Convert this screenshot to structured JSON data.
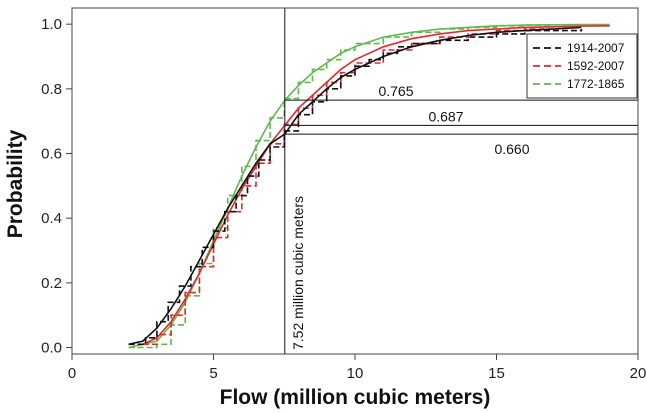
{
  "chart_data": {
    "type": "line",
    "title": "",
    "xlabel": "Flow (million cubic meters)",
    "ylabel": "Probability",
    "xlim": [
      0,
      20
    ],
    "ylim": [
      -0.02,
      1.05
    ],
    "x_ticks": [
      0,
      5,
      10,
      15,
      20
    ],
    "y_ticks": [
      0.0,
      0.2,
      0.4,
      0.6,
      0.8,
      1.0
    ],
    "grid": false,
    "legend_position": "top-right",
    "colors": {
      "1914-2007": "#111111",
      "1592-2007": "#e8262b",
      "1772-1865": "#5dbb4a"
    },
    "series": [
      {
        "name": "1914-2007",
        "style": "dashed",
        "empirical": [
          [
            2.0,
            0.01
          ],
          [
            2.6,
            0.03
          ],
          [
            3.0,
            0.08
          ],
          [
            3.4,
            0.14
          ],
          [
            3.8,
            0.19
          ],
          [
            4.2,
            0.25
          ],
          [
            4.6,
            0.31
          ],
          [
            5.0,
            0.36
          ],
          [
            5.4,
            0.42
          ],
          [
            5.8,
            0.47
          ],
          [
            6.2,
            0.53
          ],
          [
            6.6,
            0.58
          ],
          [
            7.0,
            0.62
          ],
          [
            7.5,
            0.67
          ],
          [
            8.0,
            0.72
          ],
          [
            8.5,
            0.76
          ],
          [
            9.0,
            0.8
          ],
          [
            9.5,
            0.84
          ],
          [
            10.0,
            0.87
          ],
          [
            10.5,
            0.89
          ],
          [
            11.0,
            0.91
          ],
          [
            11.5,
            0.93
          ],
          [
            12.0,
            0.94
          ],
          [
            13.0,
            0.95
          ],
          [
            14.0,
            0.96
          ],
          [
            15.0,
            0.97
          ],
          [
            16.0,
            0.98
          ],
          [
            17.0,
            0.98
          ],
          [
            18.0,
            0.985
          ]
        ],
        "fitted": [
          [
            2.0,
            0.01
          ],
          [
            2.5,
            0.02
          ],
          [
            3.0,
            0.06
          ],
          [
            3.5,
            0.12
          ],
          [
            4.0,
            0.19
          ],
          [
            4.5,
            0.27
          ],
          [
            5.0,
            0.35
          ],
          [
            5.5,
            0.43
          ],
          [
            6.0,
            0.5
          ],
          [
            6.5,
            0.57
          ],
          [
            7.0,
            0.63
          ],
          [
            7.52,
            0.66
          ],
          [
            8.0,
            0.72
          ],
          [
            8.5,
            0.76
          ],
          [
            9.0,
            0.8
          ],
          [
            9.5,
            0.835
          ],
          [
            10.0,
            0.86
          ],
          [
            11.0,
            0.9
          ],
          [
            12.0,
            0.93
          ],
          [
            13.0,
            0.95
          ],
          [
            14.0,
            0.965
          ],
          [
            15.0,
            0.975
          ],
          [
            16.0,
            0.98
          ],
          [
            17.0,
            0.985
          ],
          [
            18.0,
            0.99
          ]
        ]
      },
      {
        "name": "1592-2007",
        "style": "dashed",
        "empirical": [
          [
            2.5,
            0.01
          ],
          [
            3.0,
            0.04
          ],
          [
            3.5,
            0.1
          ],
          [
            4.0,
            0.17
          ],
          [
            4.5,
            0.25
          ],
          [
            5.0,
            0.34
          ],
          [
            5.5,
            0.42
          ],
          [
            6.0,
            0.5
          ],
          [
            6.5,
            0.57
          ],
          [
            7.0,
            0.63
          ],
          [
            7.5,
            0.69
          ],
          [
            8.0,
            0.74
          ],
          [
            8.5,
            0.78
          ],
          [
            9.0,
            0.82
          ],
          [
            9.5,
            0.85
          ],
          [
            10.0,
            0.88
          ],
          [
            11.0,
            0.92
          ],
          [
            12.0,
            0.94
          ],
          [
            13.0,
            0.96
          ],
          [
            14.0,
            0.97
          ],
          [
            15.0,
            0.98
          ],
          [
            16.0,
            0.985
          ],
          [
            17.0,
            0.99
          ]
        ],
        "fitted": [
          [
            2.5,
            0.01
          ],
          [
            3.0,
            0.03
          ],
          [
            3.5,
            0.08
          ],
          [
            4.0,
            0.15
          ],
          [
            4.5,
            0.23
          ],
          [
            5.0,
            0.32
          ],
          [
            5.5,
            0.41
          ],
          [
            6.0,
            0.49
          ],
          [
            6.5,
            0.56
          ],
          [
            7.0,
            0.63
          ],
          [
            7.52,
            0.687
          ],
          [
            8.0,
            0.74
          ],
          [
            8.5,
            0.78
          ],
          [
            9.0,
            0.82
          ],
          [
            9.5,
            0.86
          ],
          [
            10.0,
            0.89
          ],
          [
            11.0,
            0.93
          ],
          [
            12.0,
            0.955
          ],
          [
            13.0,
            0.97
          ],
          [
            14.0,
            0.98
          ],
          [
            15.0,
            0.985
          ],
          [
            16.0,
            0.99
          ],
          [
            17.0,
            0.992
          ],
          [
            18.0,
            0.994
          ],
          [
            19.0,
            0.995
          ]
        ]
      },
      {
        "name": "1772-1865",
        "style": "dashed",
        "empirical": [
          [
            2.0,
            0.0
          ],
          [
            3.0,
            0.01
          ],
          [
            3.5,
            0.07
          ],
          [
            4.0,
            0.16
          ],
          [
            4.5,
            0.26
          ],
          [
            5.0,
            0.37
          ],
          [
            5.5,
            0.47
          ],
          [
            6.0,
            0.56
          ],
          [
            6.5,
            0.64
          ],
          [
            7.0,
            0.71
          ],
          [
            7.5,
            0.77
          ],
          [
            8.0,
            0.82
          ],
          [
            8.5,
            0.86
          ],
          [
            9.0,
            0.89
          ],
          [
            9.5,
            0.92
          ],
          [
            10.0,
            0.94
          ],
          [
            11.0,
            0.96
          ],
          [
            12.0,
            0.975
          ],
          [
            13.0,
            0.985
          ],
          [
            14.0,
            0.99
          ],
          [
            15.0,
            0.995
          ],
          [
            16.0,
            0.997
          ],
          [
            17.0,
            0.998
          ]
        ],
        "fitted": [
          [
            2.0,
            0.0
          ],
          [
            3.0,
            0.02
          ],
          [
            3.5,
            0.07
          ],
          [
            4.0,
            0.14
          ],
          [
            4.5,
            0.23
          ],
          [
            5.0,
            0.33
          ],
          [
            5.5,
            0.43
          ],
          [
            6.0,
            0.53
          ],
          [
            6.5,
            0.62
          ],
          [
            7.0,
            0.7
          ],
          [
            7.52,
            0.765
          ],
          [
            8.0,
            0.81
          ],
          [
            8.5,
            0.85
          ],
          [
            9.0,
            0.88
          ],
          [
            9.5,
            0.91
          ],
          [
            10.0,
            0.93
          ],
          [
            11.0,
            0.96
          ],
          [
            12.0,
            0.975
          ],
          [
            13.0,
            0.985
          ],
          [
            14.0,
            0.99
          ],
          [
            15.0,
            0.995
          ],
          [
            16.0,
            0.997
          ],
          [
            17.0,
            0.998
          ],
          [
            18.0,
            0.999
          ],
          [
            19.0,
            0.999
          ]
        ]
      }
    ],
    "reference_lines": {
      "vertical": {
        "x": 7.52,
        "label": "7.52 million cubic meters"
      },
      "horizontal": [
        {
          "y": 0.765,
          "label": "0.765"
        },
        {
          "y": 0.687,
          "label": "0.687"
        },
        {
          "y": 0.66,
          "label": "0.660"
        }
      ]
    }
  }
}
